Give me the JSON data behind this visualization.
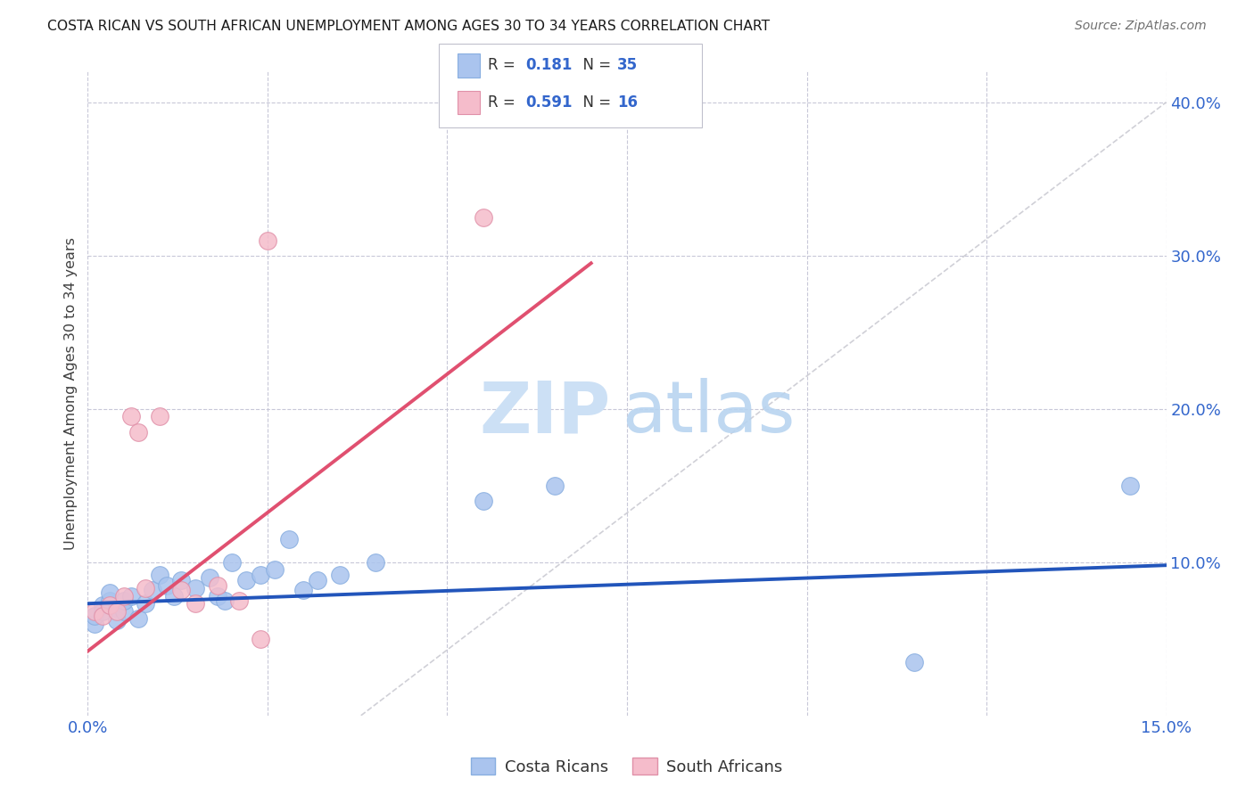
{
  "title": "COSTA RICAN VS SOUTH AFRICAN UNEMPLOYMENT AMONG AGES 30 TO 34 YEARS CORRELATION CHART",
  "source": "Source: ZipAtlas.com",
  "ylabel": "Unemployment Among Ages 30 to 34 years",
  "xlim": [
    0.0,
    0.15
  ],
  "ylim": [
    0.0,
    0.42
  ],
  "xticks": [
    0.0,
    0.025,
    0.05,
    0.075,
    0.1,
    0.125,
    0.15
  ],
  "xtick_labels": [
    "0.0%",
    "",
    "",
    "",
    "",
    "",
    "15.0%"
  ],
  "yticks_right": [
    0.0,
    0.1,
    0.2,
    0.3,
    0.4
  ],
  "ytick_right_labels": [
    "",
    "10.0%",
    "20.0%",
    "30.0%",
    "40.0%"
  ],
  "costa_rica_color": "#aac4ee",
  "south_africa_color": "#f5bccb",
  "costa_rica_line_color": "#2255bb",
  "south_africa_line_color": "#e05070",
  "diagonal_color": "#c8c8d0",
  "r_costa_rica": 0.181,
  "n_costa_rica": 35,
  "r_south_africa": 0.591,
  "n_south_africa": 16,
  "cr_line": [
    0.0,
    0.073,
    0.15,
    0.098
  ],
  "sa_line": [
    0.0,
    0.042,
    0.07,
    0.295
  ],
  "diagonal_line": [
    0.038,
    0.0,
    0.15,
    0.4
  ],
  "costa_rica_points_x": [
    0.001,
    0.001,
    0.002,
    0.002,
    0.003,
    0.003,
    0.004,
    0.004,
    0.005,
    0.005,
    0.006,
    0.007,
    0.008,
    0.009,
    0.01,
    0.011,
    0.012,
    0.013,
    0.015,
    0.017,
    0.018,
    0.019,
    0.02,
    0.022,
    0.024,
    0.026,
    0.028,
    0.03,
    0.032,
    0.035,
    0.04,
    0.055,
    0.065,
    0.115,
    0.145
  ],
  "costa_rica_points_y": [
    0.06,
    0.065,
    0.072,
    0.068,
    0.075,
    0.08,
    0.07,
    0.062,
    0.068,
    0.075,
    0.078,
    0.063,
    0.073,
    0.082,
    0.092,
    0.085,
    0.078,
    0.088,
    0.083,
    0.09,
    0.078,
    0.075,
    0.1,
    0.088,
    0.092,
    0.095,
    0.115,
    0.082,
    0.088,
    0.092,
    0.1,
    0.14,
    0.15,
    0.035,
    0.15
  ],
  "south_africa_points_x": [
    0.001,
    0.002,
    0.003,
    0.004,
    0.005,
    0.006,
    0.007,
    0.008,
    0.01,
    0.013,
    0.015,
    0.018,
    0.021,
    0.024,
    0.025,
    0.055
  ],
  "south_africa_points_y": [
    0.068,
    0.065,
    0.072,
    0.068,
    0.078,
    0.195,
    0.185,
    0.083,
    0.195,
    0.082,
    0.073,
    0.085,
    0.075,
    0.05,
    0.31,
    0.325
  ],
  "watermark_zip_color": "#cce0f5",
  "watermark_atlas_color": "#b8d4f0"
}
